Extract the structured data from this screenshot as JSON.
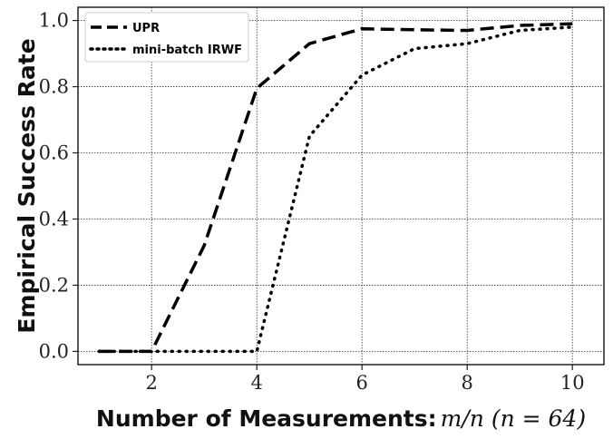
{
  "chart_data": {
    "type": "line",
    "xlabel": "Number of Measurements:",
    "xlabel_math": "m/n (n = 64)",
    "ylabel": "Empirical Success Rate",
    "xlim": [
      0.6,
      10.6
    ],
    "ylim": [
      -0.04,
      1.04
    ],
    "x_ticks": [
      2,
      4,
      6,
      8,
      10
    ],
    "y_ticks": [
      0.0,
      0.2,
      0.4,
      0.6,
      0.8,
      1.0
    ],
    "x_tick_labels": [
      "2",
      "4",
      "6",
      "8",
      "10"
    ],
    "y_tick_labels": [
      "0.0",
      "0.2",
      "0.4",
      "0.6",
      "0.8",
      "1.0"
    ],
    "grid": true,
    "legend_position": "top-left",
    "x": [
      1,
      2,
      3,
      4,
      5,
      6,
      7,
      8,
      9,
      10
    ],
    "series": [
      {
        "name": "UPR",
        "style": "dashed",
        "color": "#000000",
        "values": [
          0.0,
          0.0,
          0.32,
          0.795,
          0.93,
          0.975,
          0.972,
          0.97,
          0.985,
          0.99
        ]
      },
      {
        "name": "mini-batch IRWF",
        "style": "dotted",
        "color": "#000000",
        "values": [
          0.0,
          0.0,
          0.0,
          0.0,
          0.65,
          0.835,
          0.915,
          0.93,
          0.97,
          0.98
        ]
      }
    ]
  }
}
